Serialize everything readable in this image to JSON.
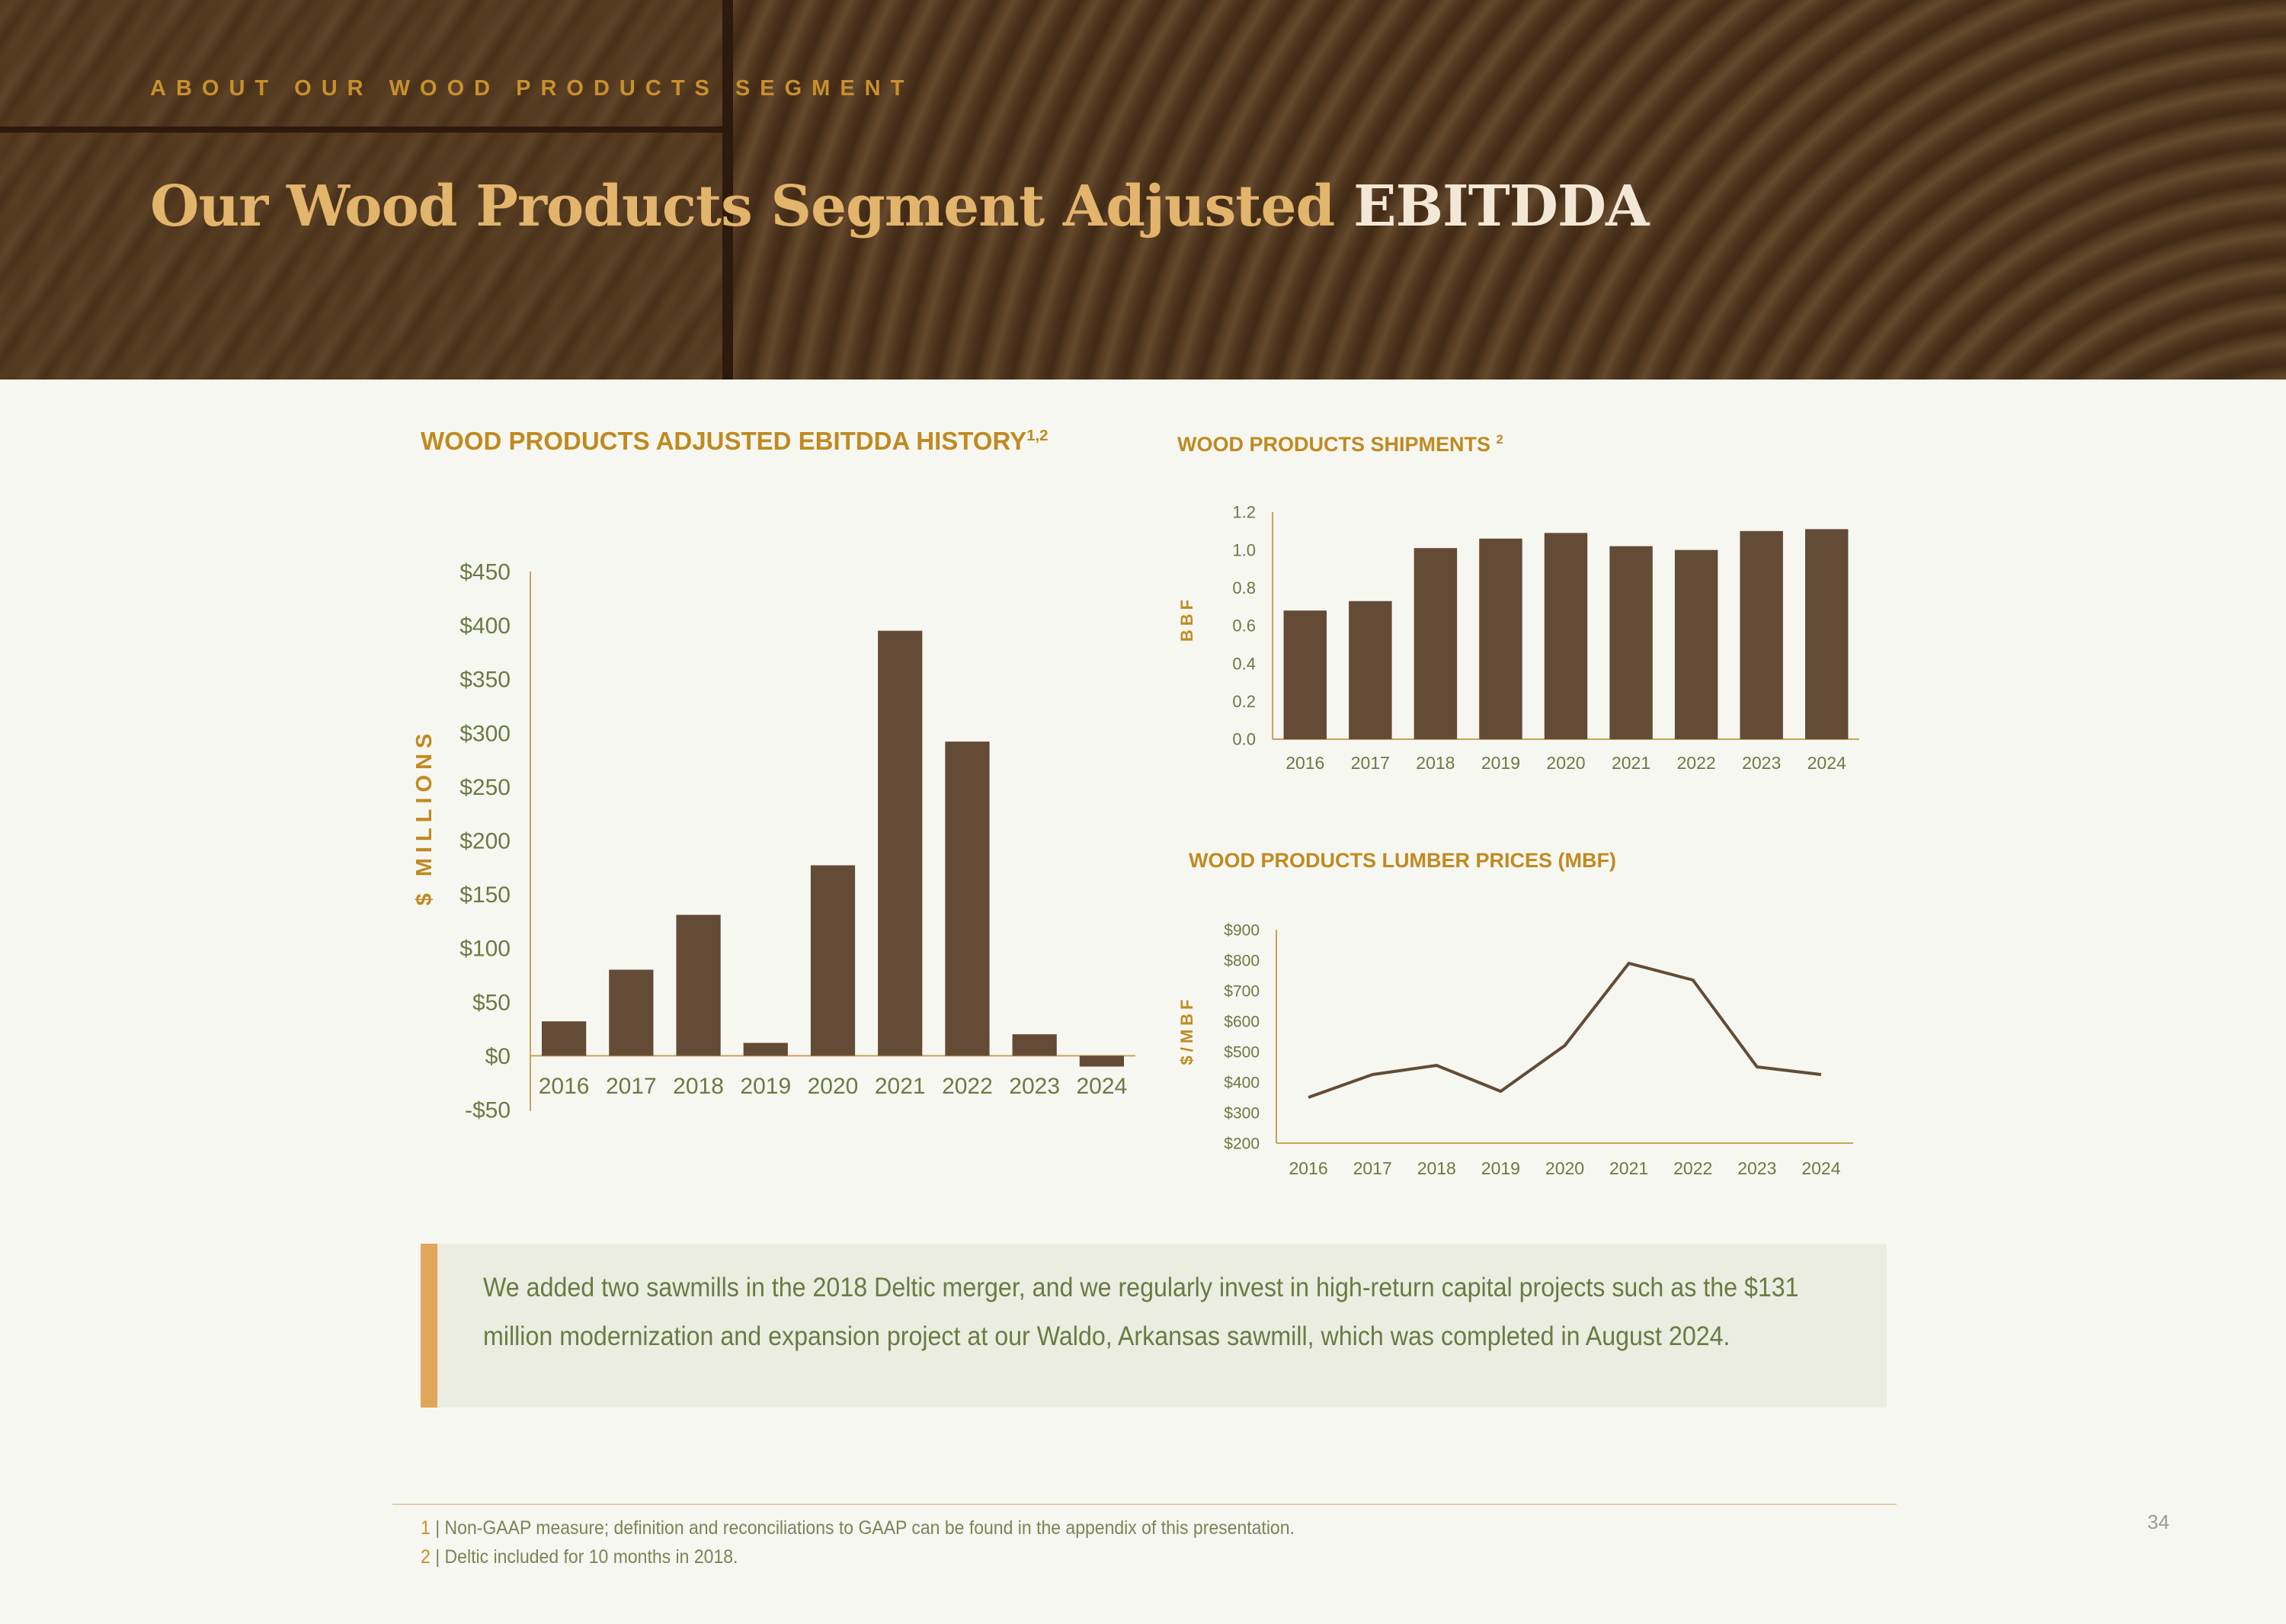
{
  "header": {
    "eyebrow": "ABOUT OUR WOOD PRODUCTS SEGMENT",
    "title_main": "Our Wood Products Segment Adjusted",
    "title_accent": "EBITDDA"
  },
  "colors": {
    "bar": "#634b35",
    "gold": "#c08a20",
    "axis": "#c8a45a",
    "tick_text": "#6a7a44",
    "callout_bg": "#ebede0",
    "callout_accent": "#e0a65a"
  },
  "chart_data": [
    {
      "id": "ebitdda",
      "type": "bar",
      "title": "WOOD PRODUCTS ADJUSTED EBITDDA HISTORY",
      "title_sup": "1,2",
      "ylabel": "$ MILLIONS",
      "xlabel": "",
      "categories": [
        "2016",
        "2017",
        "2018",
        "2019",
        "2020",
        "2021",
        "2022",
        "2023",
        "2024"
      ],
      "values": [
        32,
        80,
        131,
        12,
        177,
        395,
        292,
        20,
        -10
      ],
      "ylim": [
        -50,
        450
      ],
      "yticks": [
        -50,
        0,
        50,
        100,
        150,
        200,
        250,
        300,
        350,
        400,
        450
      ],
      "ytick_labels": [
        "-$50",
        "$0",
        "$50",
        "$100",
        "$150",
        "$200",
        "$250",
        "$300",
        "$350",
        "$400",
        "$450"
      ]
    },
    {
      "id": "shipments",
      "type": "bar",
      "title": "WOOD PRODUCTS SHIPMENTS",
      "title_sup": "2",
      "ylabel": "BBF",
      "xlabel": "",
      "categories": [
        "2016",
        "2017",
        "2018",
        "2019",
        "2020",
        "2021",
        "2022",
        "2023",
        "2024"
      ],
      "values": [
        0.68,
        0.73,
        1.01,
        1.06,
        1.09,
        1.02,
        1.0,
        1.1,
        1.11
      ],
      "ylim": [
        0,
        1.2
      ],
      "yticks": [
        0,
        0.2,
        0.4,
        0.6,
        0.8,
        1.0,
        1.2
      ],
      "ytick_labels": [
        "0.0",
        "0.2",
        "0.4",
        "0.6",
        "0.8",
        "1.0",
        "1.2"
      ]
    },
    {
      "id": "lumber",
      "type": "line",
      "title": "WOOD PRODUCTS LUMBER PRICES (MBF)",
      "title_sup": "",
      "ylabel": "$/MBF",
      "xlabel": "",
      "categories": [
        "2016",
        "2017",
        "2018",
        "2019",
        "2020",
        "2021",
        "2022",
        "2023",
        "2024"
      ],
      "values": [
        350,
        425,
        455,
        370,
        520,
        790,
        735,
        450,
        425
      ],
      "ylim": [
        200,
        900
      ],
      "yticks": [
        200,
        300,
        400,
        500,
        600,
        700,
        800,
        900
      ],
      "ytick_labels": [
        "$200",
        "$300",
        "$400",
        "$500",
        "$600",
        "$700",
        "$800",
        "$900"
      ]
    }
  ],
  "callout": {
    "text": "We added two sawmills in the 2018 Deltic merger, and we regularly invest in high-return capital projects such as the $131 million modernization and expansion project at our Waldo, Arkansas sawmill, which was completed in August 2024."
  },
  "footnotes": [
    {
      "num": "1",
      "text": "| Non-GAAP measure; definition and reconciliations to GAAP can be found in the appendix of this presentation."
    },
    {
      "num": "2",
      "text": "| Deltic included for 10 months in 2018."
    }
  ],
  "page_number": "34"
}
